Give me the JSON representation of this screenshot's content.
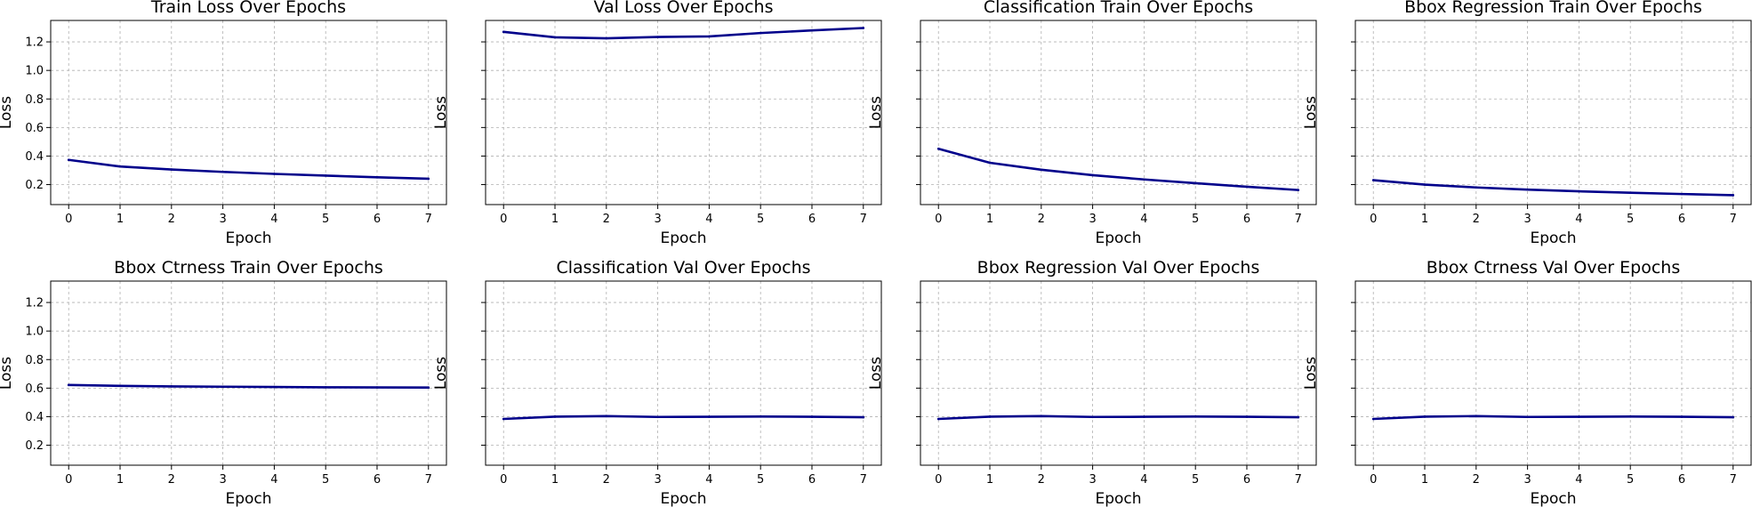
{
  "chart_data": [
    {
      "type": "line",
      "title": "Train Loss Over Epochs",
      "xlabel": "Epoch",
      "ylabel": "Loss",
      "x": [
        0,
        1,
        2,
        3,
        4,
        5,
        6,
        7
      ],
      "xticks": [
        "0",
        "1",
        "2",
        "3",
        "4",
        "5",
        "6",
        "7"
      ],
      "yticks": [
        "0.2",
        "0.4",
        "0.6",
        "0.8",
        "1.0",
        "1.2"
      ],
      "show_ytick_labels": true,
      "xlim": [
        -0.35,
        7.35
      ],
      "ylim": [
        0.06,
        1.35
      ],
      "grid": true,
      "series": [
        {
          "values": [
            0.373,
            0.327,
            0.306,
            0.289,
            0.275,
            0.263,
            0.251,
            0.241
          ]
        }
      ]
    },
    {
      "type": "line",
      "title": "Val Loss Over Epochs",
      "xlabel": "Epoch",
      "ylabel": "Loss",
      "x": [
        0,
        1,
        2,
        3,
        4,
        5,
        6,
        7
      ],
      "xticks": [
        "0",
        "1",
        "2",
        "3",
        "4",
        "5",
        "6",
        "7"
      ],
      "yticks": [
        "0.2",
        "0.4",
        "0.6",
        "0.8",
        "1.0",
        "1.2"
      ],
      "show_ytick_labels": false,
      "xlim": [
        -0.35,
        7.35
      ],
      "ylim": [
        0.06,
        1.35
      ],
      "grid": true,
      "series": [
        {
          "values": [
            1.27,
            1.232,
            1.225,
            1.234,
            1.238,
            1.262,
            1.28,
            1.297
          ]
        }
      ]
    },
    {
      "type": "line",
      "title": "Classification Train Over Epochs",
      "xlabel": "Epoch",
      "ylabel": "Loss",
      "x": [
        0,
        1,
        2,
        3,
        4,
        5,
        6,
        7
      ],
      "xticks": [
        "0",
        "1",
        "2",
        "3",
        "4",
        "5",
        "6",
        "7"
      ],
      "yticks": [
        "0.2",
        "0.4",
        "0.6",
        "0.8",
        "1.0",
        "1.2"
      ],
      "show_ytick_labels": false,
      "xlim": [
        -0.35,
        7.35
      ],
      "ylim": [
        0.06,
        1.35
      ],
      "grid": true,
      "series": [
        {
          "values": [
            0.451,
            0.353,
            0.304,
            0.266,
            0.236,
            0.21,
            0.185,
            0.162
          ]
        }
      ]
    },
    {
      "type": "line",
      "title": "Bbox Regression Train Over Epochs",
      "xlabel": "Epoch",
      "ylabel": "Loss",
      "x": [
        0,
        1,
        2,
        3,
        4,
        5,
        6,
        7
      ],
      "xticks": [
        "0",
        "1",
        "2",
        "3",
        "4",
        "5",
        "6",
        "7"
      ],
      "yticks": [
        "0.2",
        "0.4",
        "0.6",
        "0.8",
        "1.0",
        "1.2"
      ],
      "show_ytick_labels": false,
      "xlim": [
        -0.35,
        7.35
      ],
      "ylim": [
        0.06,
        1.35
      ],
      "grid": true,
      "series": [
        {
          "values": [
            0.231,
            0.2,
            0.18,
            0.165,
            0.153,
            0.143,
            0.134,
            0.126
          ]
        }
      ]
    },
    {
      "type": "line",
      "title": "Bbox Ctrness Train Over Epochs",
      "xlabel": "Epoch",
      "ylabel": "Loss",
      "x": [
        0,
        1,
        2,
        3,
        4,
        5,
        6,
        7
      ],
      "xticks": [
        "0",
        "1",
        "2",
        "3",
        "4",
        "5",
        "6",
        "7"
      ],
      "yticks": [
        "0.2",
        "0.4",
        "0.6",
        "0.8",
        "1.0",
        "1.2"
      ],
      "show_ytick_labels": true,
      "xlim": [
        -0.35,
        7.35
      ],
      "ylim": [
        0.06,
        1.35
      ],
      "grid": true,
      "series": [
        {
          "values": [
            0.622,
            0.616,
            0.612,
            0.61,
            0.608,
            0.606,
            0.605,
            0.604
          ]
        }
      ]
    },
    {
      "type": "line",
      "title": "Classification Val Over Epochs",
      "xlabel": "Epoch",
      "ylabel": "Loss",
      "x": [
        0,
        1,
        2,
        3,
        4,
        5,
        6,
        7
      ],
      "xticks": [
        "0",
        "1",
        "2",
        "3",
        "4",
        "5",
        "6",
        "7"
      ],
      "yticks": [
        "0.2",
        "0.4",
        "0.6",
        "0.8",
        "1.0",
        "1.2"
      ],
      "show_ytick_labels": false,
      "xlim": [
        -0.35,
        7.35
      ],
      "ylim": [
        0.06,
        1.35
      ],
      "grid": true,
      "series": [
        {
          "values": [
            0.384,
            0.4,
            0.404,
            0.398,
            0.399,
            0.401,
            0.399,
            0.396
          ]
        }
      ]
    },
    {
      "type": "line",
      "title": "Bbox Regression Val Over Epochs",
      "xlabel": "Epoch",
      "ylabel": "Loss",
      "x": [
        0,
        1,
        2,
        3,
        4,
        5,
        6,
        7
      ],
      "xticks": [
        "0",
        "1",
        "2",
        "3",
        "4",
        "5",
        "6",
        "7"
      ],
      "yticks": [
        "0.2",
        "0.4",
        "0.6",
        "0.8",
        "1.0",
        "1.2"
      ],
      "show_ytick_labels": false,
      "xlim": [
        -0.35,
        7.35
      ],
      "ylim": [
        0.06,
        1.35
      ],
      "grid": true,
      "series": [
        {
          "values": [
            0.384,
            0.4,
            0.404,
            0.398,
            0.399,
            0.401,
            0.399,
            0.396
          ]
        }
      ]
    },
    {
      "type": "line",
      "title": "Bbox Ctrness Val Over Epochs",
      "xlabel": "Epoch",
      "ylabel": "Loss",
      "x": [
        0,
        1,
        2,
        3,
        4,
        5,
        6,
        7
      ],
      "xticks": [
        "0",
        "1",
        "2",
        "3",
        "4",
        "5",
        "6",
        "7"
      ],
      "yticks": [
        "0.2",
        "0.4",
        "0.6",
        "0.8",
        "1.0",
        "1.2"
      ],
      "show_ytick_labels": false,
      "xlim": [
        -0.35,
        7.35
      ],
      "ylim": [
        0.06,
        1.35
      ],
      "grid": true,
      "series": [
        {
          "values": [
            0.384,
            0.4,
            0.404,
            0.398,
            0.399,
            0.401,
            0.399,
            0.396
          ]
        }
      ]
    }
  ],
  "colors": {
    "line": "#00008b",
    "grid": "#b0b0b0",
    "axes": "#000000"
  }
}
